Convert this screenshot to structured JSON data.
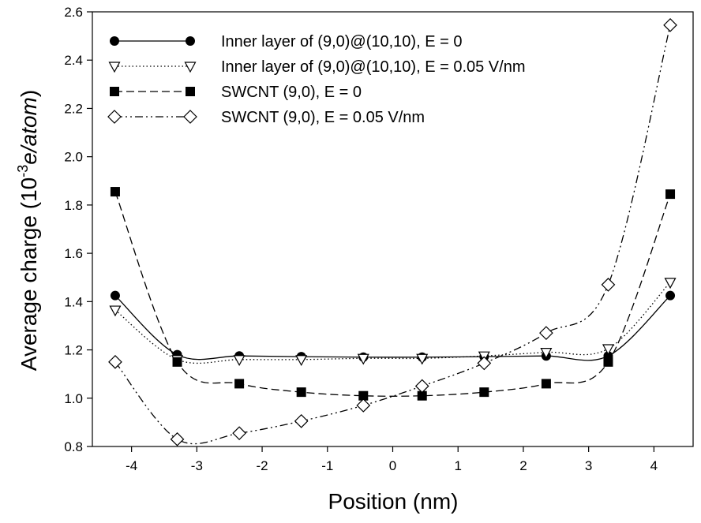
{
  "chart_data": {
    "type": "line",
    "title": "",
    "xlabel": "Position (nm)",
    "ylabel_main": "Average charge (10",
    "ylabel_sup": "-3",
    "ylabel_unit": "e/atom",
    "ylabel_close": ")",
    "xlim": [
      -4.6,
      4.6
    ],
    "ylim": [
      0.8,
      2.6
    ],
    "xticks": [
      -4,
      -3,
      -2,
      -1,
      0,
      1,
      2,
      3,
      4
    ],
    "yticks": [
      0.8,
      1.0,
      1.2,
      1.4,
      1.6,
      1.8,
      2.0,
      2.2,
      2.4,
      2.6
    ],
    "ytick_labels": [
      "0.8",
      "1.0",
      "1.2",
      "1.4",
      "1.6",
      "1.8",
      "2.0",
      "2.2",
      "2.4",
      "2.6"
    ],
    "x": [
      -4.25,
      -3.3,
      -2.35,
      -1.4,
      -0.45,
      0.45,
      1.4,
      2.35,
      3.3,
      4.25
    ],
    "legend_position": "top-left",
    "series": [
      {
        "name": "Inner layer of (9,0)@(10,10), E = 0",
        "line_style": "solid",
        "marker": "circle-filled",
        "values": [
          1.425,
          1.18,
          1.175,
          1.172,
          1.17,
          1.17,
          1.172,
          1.175,
          1.175,
          1.425
        ]
      },
      {
        "name": "Inner layer of (9,0)@(10,10), E = 0.05 V/nm",
        "line_style": "dotted",
        "marker": "triangle-down-open",
        "values": [
          1.365,
          1.16,
          1.16,
          1.16,
          1.165,
          1.165,
          1.175,
          1.19,
          1.205,
          1.48
        ]
      },
      {
        "name": "SWCNT (9,0), E = 0",
        "line_style": "dashed",
        "marker": "square-filled",
        "values": [
          1.855,
          1.15,
          1.06,
          1.025,
          1.01,
          1.01,
          1.025,
          1.06,
          1.15,
          1.845
        ]
      },
      {
        "name": "SWCNT (9,0), E = 0.05 V/nm",
        "line_style": "dash-dot-dot",
        "marker": "diamond-open",
        "values": [
          1.15,
          0.83,
          0.855,
          0.905,
          0.97,
          1.05,
          1.145,
          1.27,
          1.47,
          2.545
        ]
      }
    ]
  }
}
